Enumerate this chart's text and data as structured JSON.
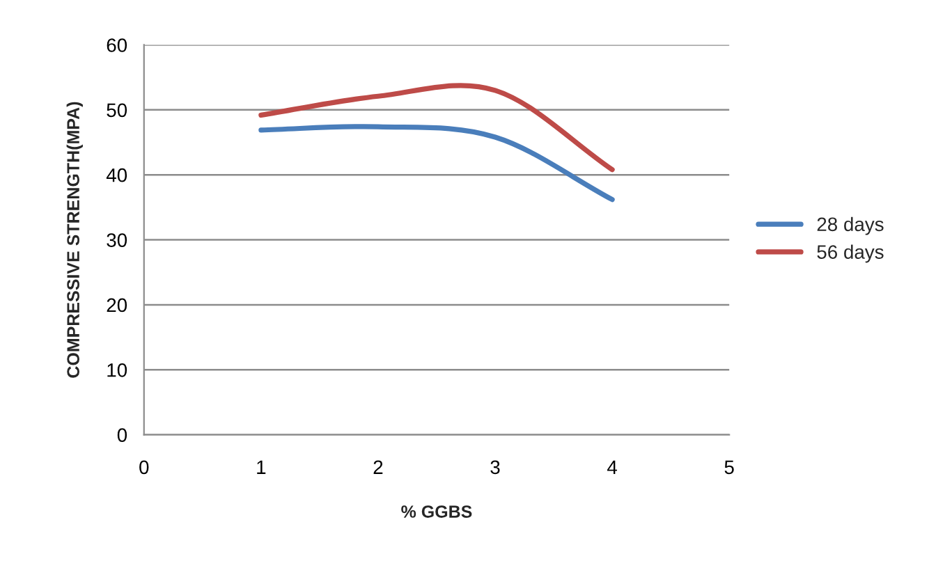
{
  "chart_data": {
    "type": "line",
    "xlabel": "% GGBS",
    "ylabel": "COMPRESSIVE STRENGTH(MPA)",
    "x": [
      1,
      2,
      3,
      4
    ],
    "series": [
      {
        "name": "28 days",
        "color": "#4a7ebb",
        "values": [
          46.9,
          47.4,
          45.8,
          36.2
        ]
      },
      {
        "name": "56 days",
        "color": "#be4b48",
        "values": [
          49.2,
          52.1,
          53,
          40.8
        ]
      }
    ],
    "xlim": [
      0,
      5
    ],
    "xticks": [
      0,
      1,
      2,
      3,
      4,
      5
    ],
    "ylim": [
      0,
      60
    ],
    "yticks": [
      0,
      10,
      20,
      30,
      40,
      50,
      60
    ],
    "grid": "y",
    "legend": "right",
    "marker": "none",
    "line_style": "solid"
  }
}
